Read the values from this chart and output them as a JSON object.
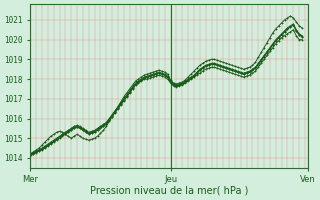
{
  "xlabel": "Pression niveau de la mer( hPa )",
  "bg_color": "#d4eedd",
  "line_color": "#1a5c1a",
  "vline_color": "#2d6a2d",
  "grid_color_v": "#e89898",
  "grid_color_h": "#e89898",
  "ylim": [
    1013.5,
    1021.8
  ],
  "xlim": [
    0,
    95
  ],
  "yticks": [
    1014,
    1015,
    1016,
    1017,
    1018,
    1019,
    1020,
    1021
  ],
  "day_labels": [
    "Mer",
    "Jeu",
    "Ven"
  ],
  "day_positions": [
    0,
    48,
    95
  ],
  "series": [
    [
      1014.2,
      1014.25,
      1014.3,
      1014.35,
      1014.4,
      1014.5,
      1014.6,
      1014.7,
      1014.8,
      1014.9,
      1015.0,
      1015.1,
      1015.2,
      1015.3,
      1015.4,
      1015.5,
      1015.55,
      1015.5,
      1015.4,
      1015.3,
      1015.2,
      1015.25,
      1015.3,
      1015.4,
      1015.5,
      1015.6,
      1015.7,
      1015.9,
      1016.1,
      1016.3,
      1016.5,
      1016.7,
      1016.9,
      1017.1,
      1017.3,
      1017.5,
      1017.7,
      1017.8,
      1017.9,
      1018.0,
      1018.0,
      1018.05,
      1018.1,
      1018.15,
      1018.2,
      1018.15,
      1018.1,
      1018.0,
      1017.8,
      1017.65,
      1017.6,
      1017.65,
      1017.7,
      1017.8,
      1017.9,
      1018.0,
      1018.1,
      1018.2,
      1018.3,
      1018.4,
      1018.5,
      1018.55,
      1018.6,
      1018.6,
      1018.55,
      1018.5,
      1018.45,
      1018.4,
      1018.35,
      1018.3,
      1018.25,
      1018.2,
      1018.15,
      1018.1,
      1018.15,
      1018.2,
      1018.3,
      1018.4,
      1018.6,
      1018.8,
      1019.0,
      1019.2,
      1019.4,
      1019.6,
      1019.8,
      1019.95,
      1020.1,
      1020.2,
      1020.3,
      1020.4,
      1020.5,
      1020.2,
      1020.0,
      1020.0
    ],
    [
      1014.2,
      1014.28,
      1014.35,
      1014.42,
      1014.5,
      1014.6,
      1014.7,
      1014.8,
      1014.9,
      1015.0,
      1015.1,
      1015.2,
      1015.3,
      1015.4,
      1015.5,
      1015.6,
      1015.65,
      1015.6,
      1015.5,
      1015.4,
      1015.3,
      1015.35,
      1015.4,
      1015.5,
      1015.6,
      1015.7,
      1015.8,
      1016.0,
      1016.2,
      1016.4,
      1016.6,
      1016.8,
      1017.0,
      1017.2,
      1017.4,
      1017.6,
      1017.8,
      1017.9,
      1018.0,
      1018.1,
      1018.15,
      1018.2,
      1018.25,
      1018.3,
      1018.35,
      1018.3,
      1018.25,
      1018.15,
      1017.9,
      1017.75,
      1017.7,
      1017.75,
      1017.8,
      1017.9,
      1018.0,
      1018.1,
      1018.2,
      1018.35,
      1018.5,
      1018.6,
      1018.7,
      1018.75,
      1018.8,
      1018.8,
      1018.75,
      1018.7,
      1018.65,
      1018.6,
      1018.55,
      1018.5,
      1018.45,
      1018.4,
      1018.35,
      1018.3,
      1018.35,
      1018.4,
      1018.5,
      1018.6,
      1018.8,
      1019.0,
      1019.2,
      1019.4,
      1019.6,
      1019.8,
      1020.0,
      1020.15,
      1020.3,
      1020.45,
      1020.6,
      1020.7,
      1020.8,
      1020.5,
      1020.3,
      1020.2
    ],
    [
      1014.15,
      1014.22,
      1014.3,
      1014.38,
      1014.45,
      1014.55,
      1014.65,
      1014.75,
      1014.85,
      1014.95,
      1015.05,
      1015.15,
      1015.25,
      1015.35,
      1015.45,
      1015.55,
      1015.6,
      1015.55,
      1015.45,
      1015.35,
      1015.25,
      1015.3,
      1015.35,
      1015.45,
      1015.55,
      1015.65,
      1015.75,
      1015.95,
      1016.15,
      1016.35,
      1016.55,
      1016.75,
      1016.95,
      1017.15,
      1017.35,
      1017.55,
      1017.75,
      1017.85,
      1017.95,
      1018.05,
      1018.1,
      1018.15,
      1018.2,
      1018.25,
      1018.3,
      1018.25,
      1018.2,
      1018.1,
      1017.85,
      1017.7,
      1017.65,
      1017.7,
      1017.75,
      1017.85,
      1017.95,
      1018.05,
      1018.15,
      1018.3,
      1018.45,
      1018.55,
      1018.65,
      1018.7,
      1018.75,
      1018.75,
      1018.7,
      1018.65,
      1018.6,
      1018.55,
      1018.5,
      1018.45,
      1018.4,
      1018.35,
      1018.3,
      1018.25,
      1018.3,
      1018.35,
      1018.45,
      1018.55,
      1018.75,
      1018.95,
      1019.15,
      1019.35,
      1019.55,
      1019.75,
      1019.95,
      1020.1,
      1020.25,
      1020.4,
      1020.55,
      1020.65,
      1020.75,
      1020.45,
      1020.25,
      1020.15
    ],
    [
      1014.2,
      1014.3,
      1014.4,
      1014.5,
      1014.65,
      1014.8,
      1014.95,
      1015.1,
      1015.2,
      1015.3,
      1015.35,
      1015.3,
      1015.2,
      1015.1,
      1015.0,
      1015.1,
      1015.2,
      1015.1,
      1015.0,
      1014.95,
      1014.9,
      1014.95,
      1015.0,
      1015.1,
      1015.25,
      1015.4,
      1015.6,
      1015.85,
      1016.1,
      1016.35,
      1016.6,
      1016.85,
      1017.1,
      1017.3,
      1017.5,
      1017.7,
      1017.9,
      1018.0,
      1018.1,
      1018.2,
      1018.25,
      1018.3,
      1018.35,
      1018.4,
      1018.45,
      1018.4,
      1018.35,
      1018.25,
      1017.95,
      1017.8,
      1017.75,
      1017.8,
      1017.85,
      1017.95,
      1018.1,
      1018.25,
      1018.4,
      1018.55,
      1018.7,
      1018.8,
      1018.9,
      1018.95,
      1019.0,
      1019.0,
      1018.95,
      1018.9,
      1018.85,
      1018.8,
      1018.75,
      1018.7,
      1018.65,
      1018.6,
      1018.55,
      1018.5,
      1018.55,
      1018.6,
      1018.7,
      1018.85,
      1019.1,
      1019.35,
      1019.6,
      1019.85,
      1020.1,
      1020.35,
      1020.55,
      1020.7,
      1020.85,
      1021.0,
      1021.1,
      1021.2,
      1021.1,
      1020.9,
      1020.7,
      1020.6
    ],
    [
      1014.1,
      1014.18,
      1014.27,
      1014.36,
      1014.44,
      1014.54,
      1014.64,
      1014.74,
      1014.84,
      1014.94,
      1015.04,
      1015.14,
      1015.24,
      1015.34,
      1015.44,
      1015.54,
      1015.59,
      1015.54,
      1015.44,
      1015.34,
      1015.24,
      1015.29,
      1015.34,
      1015.44,
      1015.54,
      1015.64,
      1015.74,
      1015.94,
      1016.14,
      1016.34,
      1016.54,
      1016.74,
      1016.94,
      1017.14,
      1017.34,
      1017.54,
      1017.74,
      1017.84,
      1017.94,
      1018.04,
      1018.09,
      1018.14,
      1018.19,
      1018.24,
      1018.29,
      1018.24,
      1018.19,
      1018.09,
      1017.84,
      1017.69,
      1017.64,
      1017.69,
      1017.74,
      1017.84,
      1017.94,
      1018.04,
      1018.14,
      1018.29,
      1018.44,
      1018.54,
      1018.64,
      1018.69,
      1018.74,
      1018.74,
      1018.69,
      1018.64,
      1018.59,
      1018.54,
      1018.49,
      1018.44,
      1018.39,
      1018.34,
      1018.29,
      1018.24,
      1018.29,
      1018.34,
      1018.44,
      1018.54,
      1018.74,
      1018.94,
      1019.14,
      1019.34,
      1019.54,
      1019.74,
      1019.94,
      1020.09,
      1020.24,
      1020.39,
      1020.54,
      1020.64,
      1020.74,
      1020.44,
      1020.24,
      1020.14
    ]
  ]
}
